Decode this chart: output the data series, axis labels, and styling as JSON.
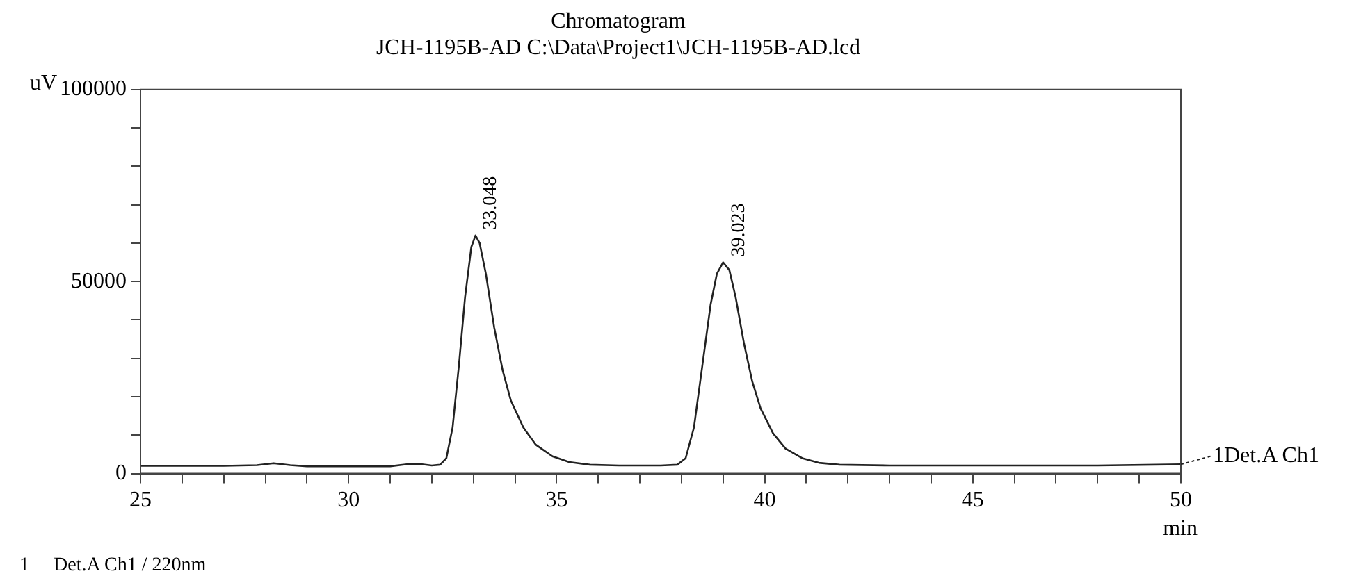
{
  "chart_data": {
    "type": "line",
    "title": "Chromatogram",
    "subtitle": "JCH-1195B-AD C:\\Data\\Project1\\JCH-1195B-AD.lcd",
    "xlabel": "min",
    "ylabel": "uV",
    "x": [
      25,
      27,
      27.8,
      28.2,
      28.6,
      29,
      31,
      31.4,
      31.7,
      32.0,
      32.2,
      32.35,
      32.5,
      32.65,
      32.8,
      32.95,
      33.05,
      33.15,
      33.3,
      33.5,
      33.7,
      33.9,
      34.2,
      34.5,
      34.9,
      35.3,
      35.8,
      36.5,
      37.5,
      37.9,
      38.1,
      38.3,
      38.5,
      38.7,
      38.85,
      39.0,
      39.15,
      39.3,
      39.5,
      39.7,
      39.9,
      40.2,
      40.5,
      40.9,
      41.3,
      41.8,
      43,
      48,
      50
    ],
    "series": [
      {
        "name": "1Det.A Ch1",
        "color": "#222222",
        "values": [
          2000,
          2000,
          2200,
          2700,
          2200,
          1900,
          1900,
          2400,
          2500,
          2100,
          2300,
          4000,
          12000,
          28000,
          46000,
          59000,
          62000,
          60000,
          52000,
          38000,
          27000,
          19000,
          12000,
          7500,
          4500,
          3000,
          2300,
          2100,
          2100,
          2300,
          4000,
          12000,
          28000,
          44000,
          52000,
          55000,
          53000,
          46000,
          34000,
          24000,
          17000,
          10500,
          6500,
          4000,
          2800,
          2300,
          2100,
          2100,
          2400
        ]
      }
    ],
    "xlim": [
      25,
      50
    ],
    "xticks": [
      25,
      {
        "value": 26,
        "label": null
      },
      {
        "value": 27,
        "label": null
      },
      {
        "value": 28,
        "label": null
      },
      {
        "value": 29,
        "label": null
      },
      30,
      {
        "value": 31,
        "label": null
      },
      {
        "value": 32,
        "label": null
      },
      {
        "value": 33,
        "label": null
      },
      {
        "value": 34,
        "label": null
      },
      35,
      {
        "value": 36,
        "label": null
      },
      {
        "value": 37,
        "label": null
      },
      {
        "value": 38,
        "label": null
      },
      {
        "value": 39,
        "label": null
      },
      40,
      {
        "value": 41,
        "label": null
      },
      {
        "value": 42,
        "label": null
      },
      {
        "value": 43,
        "label": null
      },
      {
        "value": 44,
        "label": null
      },
      45,
      {
        "value": 46,
        "label": null
      },
      {
        "value": 47,
        "label": null
      },
      {
        "value": 48,
        "label": null
      },
      {
        "value": 49,
        "label": null
      },
      50
    ],
    "ylim": [
      0,
      100000
    ],
    "yticks": [
      0,
      {
        "value": 10000,
        "label": null
      },
      {
        "value": 20000,
        "label": null
      },
      {
        "value": 30000,
        "label": null
      },
      {
        "value": 40000,
        "label": null
      },
      50000,
      {
        "value": 60000,
        "label": null
      },
      {
        "value": 70000,
        "label": null
      },
      {
        "value": 80000,
        "label": null
      },
      {
        "value": 90000,
        "label": null
      },
      100000
    ],
    "grid": false,
    "legend": "right",
    "marker": "none",
    "line_style": "solid",
    "annotations": [
      {
        "text": "33.048",
        "x": 33.048,
        "y": 62000
      },
      {
        "text": "39.023",
        "x": 39.023,
        "y": 55000
      },
      "1    Det.A Ch1 / 220nm"
    ]
  }
}
